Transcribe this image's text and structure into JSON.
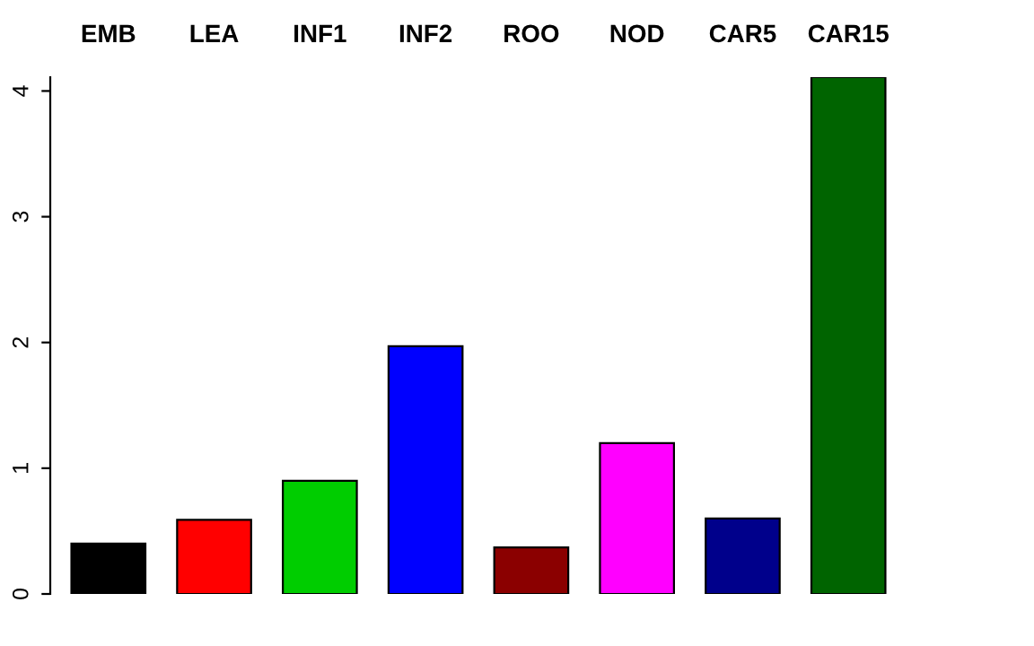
{
  "chart_data": {
    "type": "bar",
    "categories": [
      "EMB",
      "LEA",
      "INF1",
      "INF2",
      "ROO",
      "NOD",
      "CAR5",
      "CAR15"
    ],
    "values": [
      0.4,
      0.59,
      0.9,
      1.97,
      0.37,
      1.2,
      0.6,
      4.11
    ],
    "colors": [
      "#000000",
      "#ff0000",
      "#00cd00",
      "#0000ff",
      "#8b0000",
      "#ff00ff",
      "#00008b",
      "#006400"
    ],
    "ylim": [
      0,
      4.11
    ],
    "yticks": [
      0,
      1,
      2,
      3,
      4
    ],
    "grid": false,
    "legend": false
  }
}
